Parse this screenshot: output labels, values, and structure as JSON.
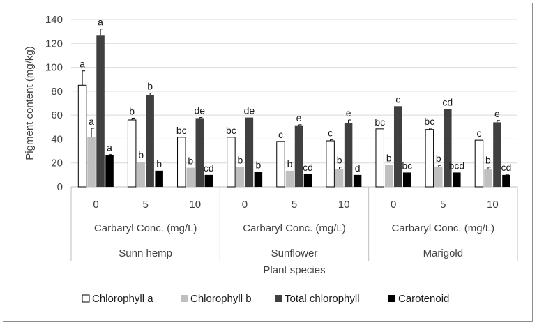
{
  "chart_data": {
    "type": "bar",
    "ylabel": "Pigment content (mg/kg)",
    "xlabel": "Plant species",
    "ylim": [
      0,
      140
    ],
    "yticks": [
      "0",
      "20",
      "40",
      "60",
      "80",
      "100",
      "120",
      "140"
    ],
    "grid": true,
    "legend_position": "bottom",
    "conc_label": "Carbaryl Conc. (mg/L)",
    "species": [
      "Sunn hemp",
      "Sunflower",
      "Marigold"
    ],
    "concentrations": [
      "0",
      "5",
      "10"
    ],
    "series": [
      {
        "name": "Chlorophyll a",
        "color": "#ffffff",
        "values": [
          85,
          56,
          41.5,
          41.5,
          38,
          38.5,
          48.5,
          48,
          39
        ],
        "errors": [
          12,
          1.5,
          0,
          0,
          0,
          1,
          0,
          1,
          0
        ],
        "letters": [
          "a",
          "b",
          "bc",
          "bc",
          "c",
          "c",
          "bc",
          "bc",
          "c"
        ]
      },
      {
        "name": "Chlorophyll b",
        "color": "#bfbfbf",
        "values": [
          42,
          21,
          16,
          16.5,
          13.5,
          15,
          18.5,
          17,
          14.5
        ],
        "errors": [
          7,
          0,
          0,
          0,
          0,
          1.5,
          0,
          1,
          2
        ],
        "letters": [
          "a",
          "b",
          "b",
          "b",
          "b",
          "b",
          "b",
          "b",
          "b"
        ]
      },
      {
        "name": "Total chlorophyll",
        "color": "#404040",
        "values": [
          127,
          77,
          57.5,
          58,
          51.5,
          53.5,
          67.5,
          65,
          54
        ],
        "errors": [
          5,
          1.5,
          0.5,
          0,
          0.5,
          2.5,
          0,
          0,
          1.5
        ],
        "letters": [
          "a",
          "b",
          "de",
          "de",
          "e",
          "e",
          "c",
          "cd",
          "e"
        ]
      },
      {
        "name": "Carotenoid",
        "color": "#000000",
        "values": [
          26.5,
          13.5,
          10,
          12.5,
          10.5,
          10,
          12,
          12,
          10
        ],
        "errors": [
          0.5,
          0,
          0,
          0,
          0,
          0,
          0,
          0,
          0.5
        ],
        "letters": [
          "a",
          "b",
          "cd",
          "b",
          "cd",
          "d",
          "bc",
          "bcd",
          "cd"
        ]
      }
    ]
  }
}
